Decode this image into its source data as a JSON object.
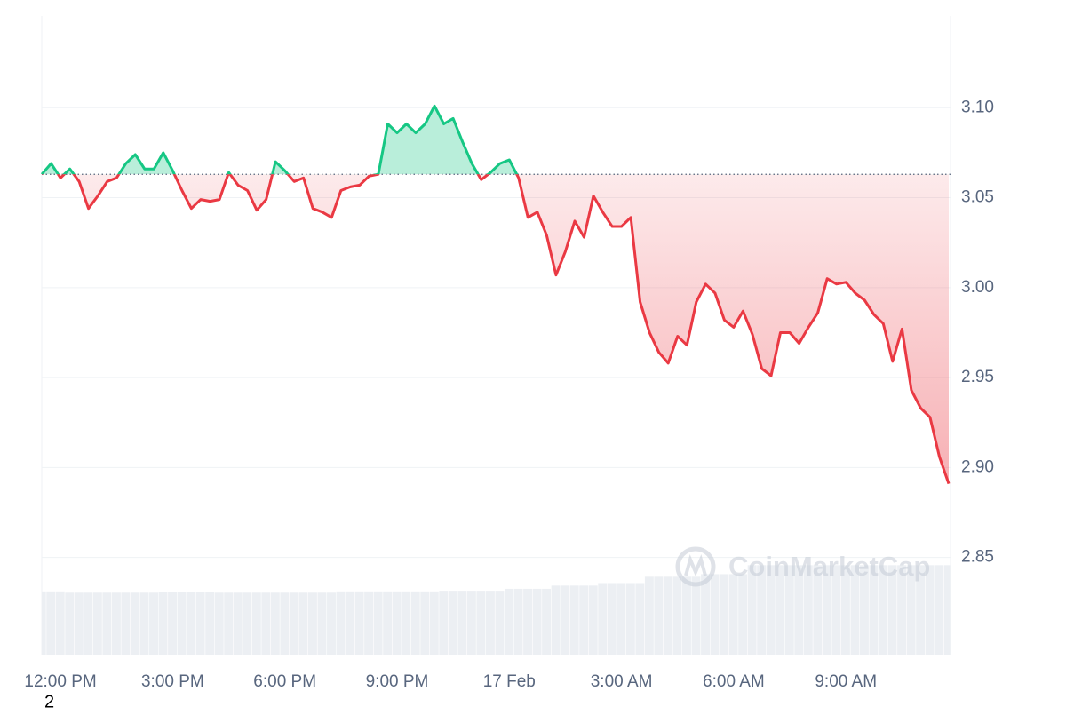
{
  "chart_data": {
    "type": "line",
    "watermark": "CoinMarketCap",
    "corner_label": "2",
    "categories": [
      null,
      null,
      "12:00 PM",
      null,
      null,
      null,
      null,
      null,
      null,
      null,
      null,
      null,
      null,
      null,
      "3:00 PM",
      null,
      null,
      null,
      null,
      null,
      null,
      null,
      null,
      null,
      null,
      null,
      "6:00 PM",
      null,
      null,
      null,
      null,
      null,
      null,
      null,
      null,
      null,
      null,
      null,
      "9:00 PM",
      null,
      null,
      null,
      null,
      null,
      null,
      null,
      null,
      null,
      null,
      null,
      "17 Feb",
      null,
      null,
      null,
      null,
      null,
      null,
      null,
      null,
      null,
      null,
      null,
      "3:00 AM",
      null,
      null,
      null,
      null,
      null,
      null,
      null,
      null,
      null,
      null,
      null,
      "6:00 AM",
      null,
      null,
      null,
      null,
      null,
      null,
      null,
      null,
      null,
      null,
      null,
      "9:00 AM",
      null,
      null,
      null,
      null,
      null,
      null,
      null,
      null,
      null,
      null,
      null
    ],
    "series": [
      {
        "color": "#16c784",
        "down_color": "#ea3943",
        "values": [
          3.063,
          3.069,
          3.061,
          3.066,
          3.059,
          3.044,
          3.051,
          3.059,
          3.061,
          3.069,
          3.074,
          3.066,
          3.066,
          3.075,
          3.065,
          3.054,
          3.044,
          3.049,
          3.048,
          3.049,
          3.064,
          3.057,
          3.054,
          3.043,
          3.049,
          3.07,
          3.065,
          3.059,
          3.061,
          3.044,
          3.042,
          3.039,
          3.054,
          3.056,
          3.057,
          3.062,
          3.063,
          3.091,
          3.086,
          3.091,
          3.086,
          3.091,
          3.101,
          3.091,
          3.094,
          3.081,
          3.069,
          3.06,
          3.064,
          3.069,
          3.071,
          3.061,
          3.039,
          3.042,
          3.029,
          3.007,
          3.02,
          3.037,
          3.028,
          3.051,
          3.042,
          3.034,
          3.034,
          3.039,
          2.992,
          2.975,
          2.964,
          2.958,
          2.973,
          2.968,
          2.992,
          3.002,
          2.997,
          2.982,
          2.978,
          2.987,
          2.974,
          2.955,
          2.951,
          2.975,
          2.975,
          2.969,
          2.978,
          2.986,
          3.005,
          3.002,
          3.003,
          2.997,
          2.993,
          2.985,
          2.98,
          2.959,
          2.977,
          2.943,
          2.933,
          2.928,
          2.906,
          2.891
        ]
      },
      {
        "type": "bar",
        "axis": "y2",
        "color": "#eceff3",
        "values": [
          9.9,
          9.9,
          9.9,
          9.7,
          9.7,
          9.7,
          9.7,
          9.7,
          9.7,
          9.7,
          9.7,
          9.7,
          9.7,
          9.8,
          9.8,
          9.8,
          9.8,
          9.8,
          9.8,
          9.7,
          9.7,
          9.7,
          9.7,
          9.7,
          9.7,
          9.7,
          9.7,
          9.7,
          9.7,
          9.7,
          9.7,
          9.7,
          9.9,
          9.9,
          9.9,
          9.9,
          9.9,
          9.9,
          9.9,
          9.9,
          9.9,
          9.9,
          9.9,
          10.0,
          10.0,
          10.0,
          10.0,
          10.0,
          10.0,
          10.0,
          10.3,
          10.3,
          10.3,
          10.3,
          10.3,
          10.8,
          10.8,
          10.8,
          10.8,
          10.8,
          11.2,
          11.2,
          11.2,
          11.2,
          11.2,
          12.2,
          12.2,
          12.2,
          12.2,
          12.2,
          12.2,
          12.6,
          12.6,
          12.6,
          12.6,
          12.6,
          14.0,
          14.0,
          14.0,
          14.0,
          14.0,
          14.0,
          14.0,
          14.0,
          14.0,
          14.0,
          14.0,
          14.0,
          14.0,
          14.0,
          14.0,
          14.0,
          14.0,
          14.0,
          14.0,
          14.0,
          14.0,
          14.0
        ]
      }
    ],
    "baseline": 3.063,
    "ylim": [
      2.796,
      3.151
    ],
    "yticks": [
      2.85,
      {
        "value": 2.9,
        "label": "2.90"
      },
      2.95,
      {
        "value": 3,
        "label": "3.00"
      },
      3.05,
      {
        "value": 3.1,
        "label": "3.10"
      }
    ],
    "y2lim": [
      0,
      100
    ],
    "grid": true
  }
}
